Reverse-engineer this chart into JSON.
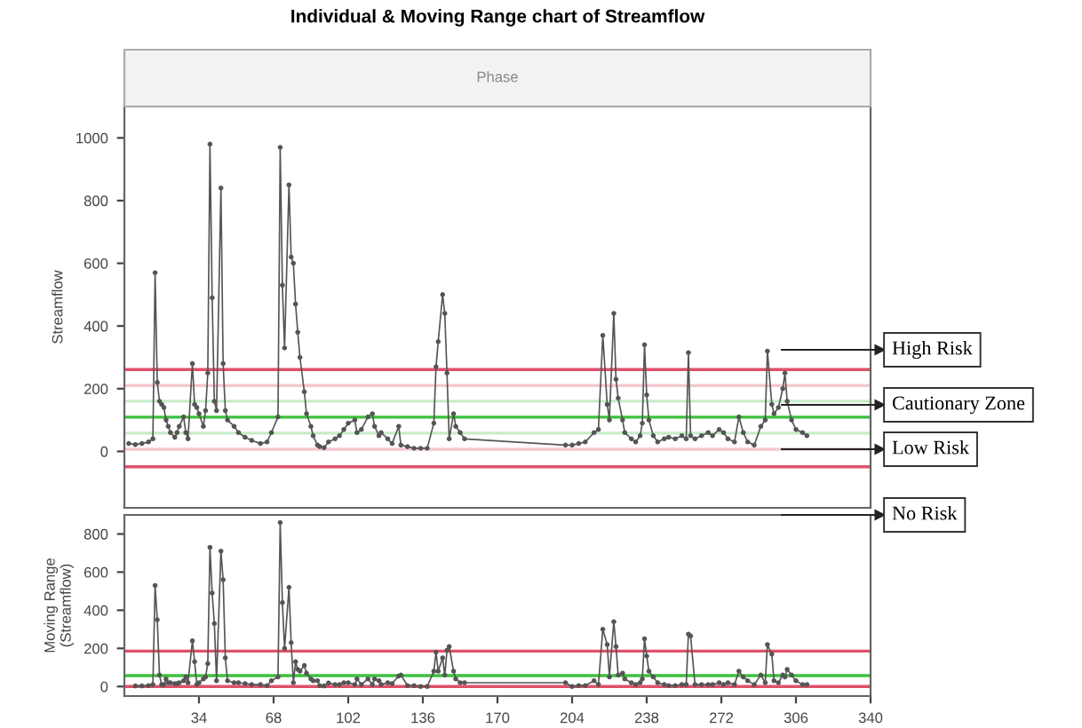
{
  "chart_data": [
    {
      "type": "line",
      "title": "Individual & Moving Range chart of Streamflow",
      "ylabel": "Streamflow",
      "annotations": [
        "Phase",
        "High Risk",
        "Cautionary Zone",
        "Low Risk",
        "No Risk"
      ],
      "marker": "circle",
      "line_style": "solid",
      "grid": false,
      "tick_labels": "y",
      "xlim": [
        0,
        340
      ],
      "ylim": [
        -180,
        1100
      ],
      "yticks": [
        0,
        200,
        400,
        600,
        800,
        1000
      ],
      "ref_lines": [
        {
          "axis": "y",
          "value": 261,
          "color": "#e0506a"
        },
        {
          "axis": "y",
          "value": 210,
          "color": "#f6c8d0"
        },
        {
          "axis": "y",
          "value": 160,
          "color": "#c8ecc8"
        },
        {
          "axis": "y",
          "value": 109,
          "color": "#3cc03c"
        },
        {
          "axis": "y",
          "value": 58,
          "color": "#c8ecc8"
        },
        {
          "axis": "y",
          "value": 7,
          "color": "#f6c8d0"
        },
        {
          "axis": "y",
          "value": -49,
          "color": "#e0506a"
        }
      ],
      "series": [
        {
          "color": "#555555",
          "x": [
            2,
            5,
            8,
            11,
            13,
            14,
            15,
            16,
            17,
            18,
            19,
            20,
            21,
            23,
            24,
            25,
            27,
            28,
            29,
            31,
            32,
            33,
            34,
            36,
            37,
            38,
            39,
            40,
            41,
            42,
            44,
            45,
            46,
            47,
            50,
            52,
            55,
            58,
            62,
            65,
            67,
            70,
            71,
            72,
            73,
            75,
            76,
            77,
            78,
            79,
            80,
            82,
            83,
            85,
            86,
            88,
            89,
            91,
            93,
            96,
            98,
            100,
            102,
            105,
            106,
            108,
            111,
            113,
            114,
            116,
            117,
            120,
            122,
            125,
            126,
            129,
            132,
            135,
            138,
            141,
            142,
            143,
            145,
            146,
            147,
            148,
            150,
            151,
            153,
            155,
            201,
            204,
            207,
            210,
            214,
            216,
            218,
            220,
            221,
            223,
            224,
            225,
            227,
            228,
            231,
            233,
            235,
            236,
            237,
            238,
            239,
            241,
            243,
            246,
            248,
            251,
            254,
            256,
            257,
            258,
            260,
            263,
            266,
            268,
            271,
            273,
            275,
            278,
            280,
            282,
            284,
            287,
            290,
            292,
            293,
            295,
            296,
            298,
            300,
            301,
            302,
            304,
            306,
            309,
            311
          ],
          "values": [
            25,
            22,
            25,
            30,
            40,
            570,
            220,
            160,
            150,
            140,
            100,
            80,
            60,
            45,
            60,
            80,
            110,
            60,
            40,
            280,
            150,
            140,
            120,
            80,
            130,
            250,
            980,
            490,
            160,
            130,
            840,
            280,
            130,
            100,
            80,
            60,
            45,
            35,
            25,
            30,
            60,
            110,
            970,
            530,
            330,
            850,
            620,
            600,
            470,
            380,
            300,
            190,
            120,
            80,
            50,
            20,
            15,
            12,
            30,
            40,
            50,
            70,
            90,
            100,
            60,
            70,
            110,
            120,
            80,
            50,
            60,
            40,
            25,
            80,
            20,
            15,
            10,
            10,
            10,
            90,
            270,
            350,
            500,
            440,
            250,
            40,
            120,
            80,
            60,
            40,
            20,
            20,
            25,
            30,
            60,
            70,
            370,
            150,
            100,
            440,
            230,
            170,
            100,
            60,
            40,
            30,
            50,
            90,
            340,
            180,
            100,
            50,
            30,
            40,
            45,
            40,
            50,
            40,
            315,
            50,
            40,
            50,
            60,
            50,
            70,
            60,
            40,
            30,
            110,
            60,
            30,
            20,
            80,
            100,
            320,
            150,
            120,
            140,
            200,
            250,
            160,
            100,
            70,
            60,
            50
          ]
        }
      ]
    },
    {
      "type": "line",
      "ylabel": "Moving Range\n(Streamflow)",
      "marker": "circle",
      "line_style": "solid",
      "grid": false,
      "xlim": [
        0,
        340
      ],
      "xticks": [
        34,
        68,
        102,
        136,
        170,
        204,
        238,
        272,
        306,
        340
      ],
      "ylim": [
        -50,
        900
      ],
      "yticks": [
        0,
        200,
        400,
        600,
        800
      ],
      "ref_lines": [
        {
          "axis": "y",
          "value": 186,
          "color": "#e0506a"
        },
        {
          "axis": "y",
          "value": 57,
          "color": "#3cc03c"
        },
        {
          "axis": "y",
          "value": 0,
          "color": "#e0506a"
        }
      ],
      "series": [
        {
          "color": "#555555",
          "x": [
            5,
            8,
            11,
            13,
            14,
            15,
            16,
            17,
            18,
            19,
            20,
            21,
            23,
            24,
            25,
            27,
            28,
            29,
            31,
            32,
            33,
            34,
            36,
            37,
            38,
            39,
            40,
            41,
            42,
            44,
            45,
            46,
            47,
            50,
            52,
            55,
            58,
            62,
            65,
            67,
            70,
            71,
            72,
            73,
            75,
            76,
            77,
            78,
            79,
            80,
            82,
            83,
            85,
            86,
            88,
            89,
            91,
            93,
            96,
            98,
            100,
            102,
            105,
            106,
            108,
            111,
            113,
            114,
            116,
            117,
            120,
            122,
            125,
            126,
            129,
            132,
            135,
            138,
            141,
            142,
            143,
            145,
            146,
            147,
            148,
            150,
            151,
            153,
            155,
            201,
            204,
            207,
            210,
            214,
            216,
            218,
            220,
            221,
            223,
            224,
            225,
            227,
            228,
            231,
            233,
            235,
            236,
            237,
            238,
            239,
            241,
            243,
            246,
            248,
            251,
            254,
            256,
            257,
            258,
            260,
            263,
            266,
            268,
            271,
            273,
            275,
            278,
            280,
            282,
            284,
            287,
            290,
            292,
            293,
            295,
            296,
            298,
            300,
            301,
            302,
            304,
            306,
            309,
            311
          ],
          "values": [
            3,
            3,
            5,
            10,
            530,
            350,
            60,
            10,
            10,
            40,
            20,
            20,
            15,
            15,
            20,
            30,
            50,
            20,
            240,
            130,
            10,
            20,
            40,
            50,
            120,
            730,
            490,
            330,
            30,
            710,
            560,
            150,
            30,
            20,
            20,
            15,
            10,
            10,
            5,
            30,
            50,
            860,
            440,
            200,
            520,
            230,
            20,
            130,
            90,
            80,
            110,
            70,
            40,
            30,
            30,
            5,
            3,
            18,
            10,
            10,
            20,
            20,
            10,
            40,
            10,
            40,
            10,
            40,
            30,
            10,
            20,
            15,
            55,
            60,
            5,
            5,
            0,
            0,
            80,
            180,
            80,
            150,
            60,
            190,
            210,
            80,
            40,
            20,
            20,
            20,
            0,
            5,
            5,
            30,
            10,
            300,
            220,
            50,
            340,
            210,
            60,
            70,
            40,
            20,
            10,
            20,
            40,
            250,
            160,
            80,
            50,
            20,
            10,
            5,
            5,
            10,
            10,
            275,
            265,
            10,
            10,
            10,
            10,
            20,
            10,
            20,
            10,
            80,
            50,
            30,
            10,
            60,
            20,
            220,
            170,
            30,
            20,
            60,
            50,
            90,
            60,
            30,
            10,
            10
          ]
        }
      ]
    }
  ]
}
